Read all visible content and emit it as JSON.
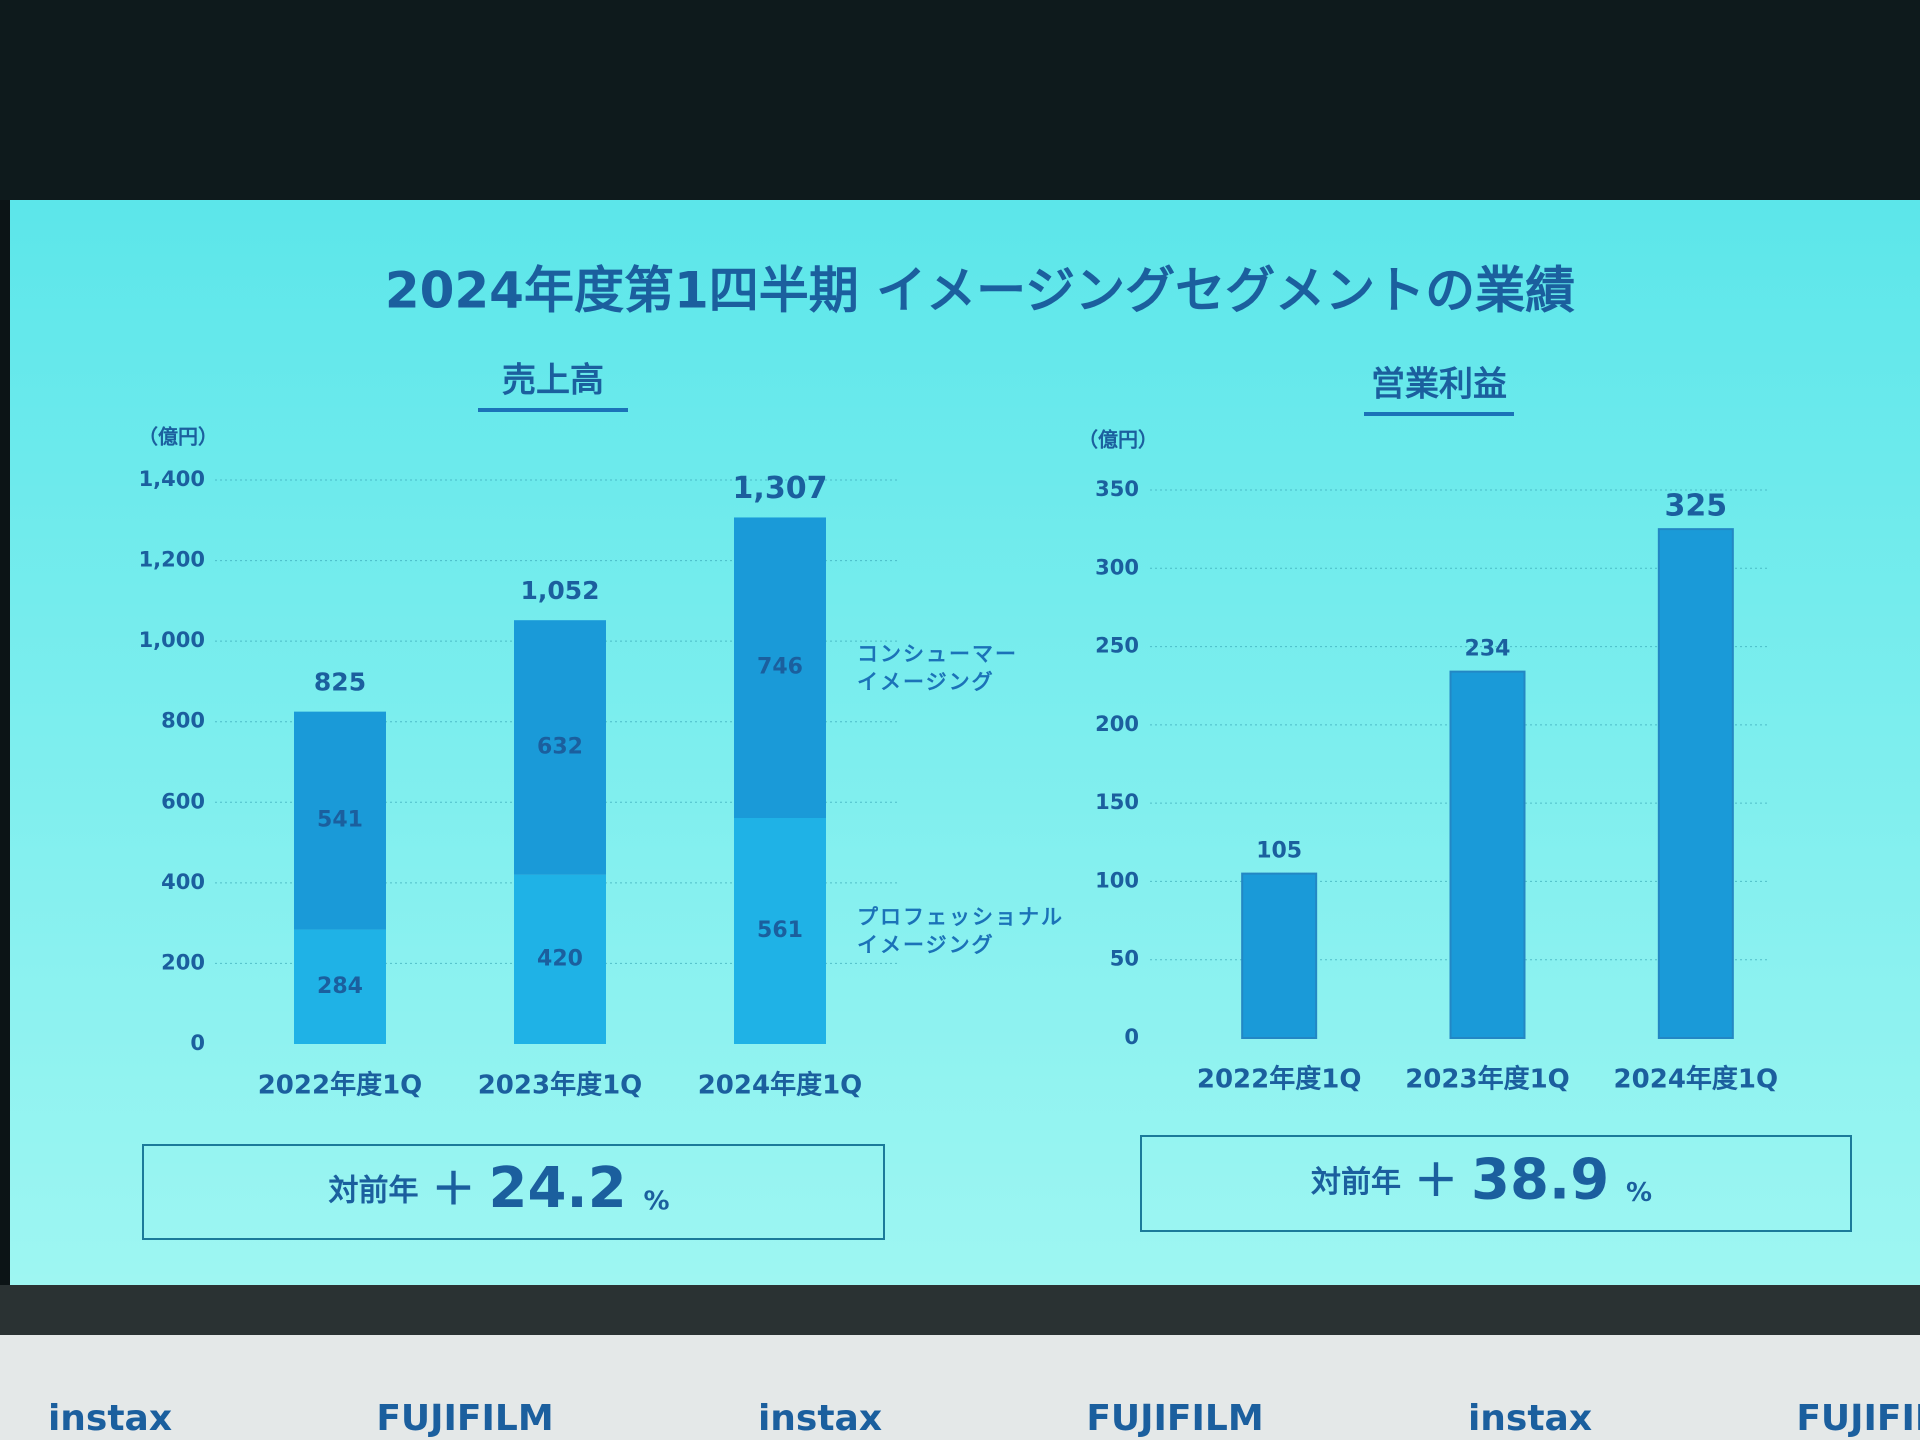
{
  "title": "2024年度第1四半期 イメージングセグメントの業績",
  "footer": [
    "instax",
    "FUJIFILM",
    "instax",
    "FUJIFILM",
    "instax",
    "FUJIFILM"
  ],
  "chart_data": [
    {
      "type": "bar",
      "stacked": true,
      "title": "売上高",
      "y_label": "（億円）",
      "categories": [
        "2022年度1Q",
        "2023年度1Q",
        "2024年度1Q"
      ],
      "series": [
        {
          "name": "プロフェッショナル\nイメージング",
          "color": "#1fb2e6",
          "values": [
            284,
            420,
            561
          ]
        },
        {
          "name": "コンシューマー\nイメージング",
          "color": "#1a9ad8",
          "values": [
            541,
            632,
            746
          ]
        }
      ],
      "totals": [
        825,
        1052,
        1307
      ],
      "total_labels": [
        "825",
        "1,052",
        "1,307"
      ],
      "ylim": [
        0,
        1400
      ],
      "yticks": [
        0,
        200,
        400,
        600,
        800,
        {
          "value": 1000,
          "label": "1,000"
        },
        {
          "value": 1200,
          "label": "1,200"
        },
        {
          "value": 1400,
          "label": "1,400"
        }
      ],
      "grid": true,
      "highlight_color": "#f6c4e6",
      "yoy": {
        "text": "対前年",
        "sign": "＋",
        "value": 24.2,
        "unit": "%"
      }
    },
    {
      "type": "bar",
      "title": "営業利益",
      "y_label": "（億円）",
      "categories": [
        "2022年度1Q",
        "2023年度1Q",
        "2024年度1Q"
      ],
      "values": [
        105,
        234,
        325
      ],
      "color": "#1a9ad8",
      "ylim": [
        0,
        350
      ],
      "yticks": [
        0,
        50,
        100,
        150,
        200,
        250,
        300,
        350
      ],
      "grid": true,
      "highlight_color": "#f6c4e6",
      "yoy": {
        "text": "対前年",
        "sign": "＋",
        "value": 38.9,
        "unit": "%"
      }
    }
  ]
}
